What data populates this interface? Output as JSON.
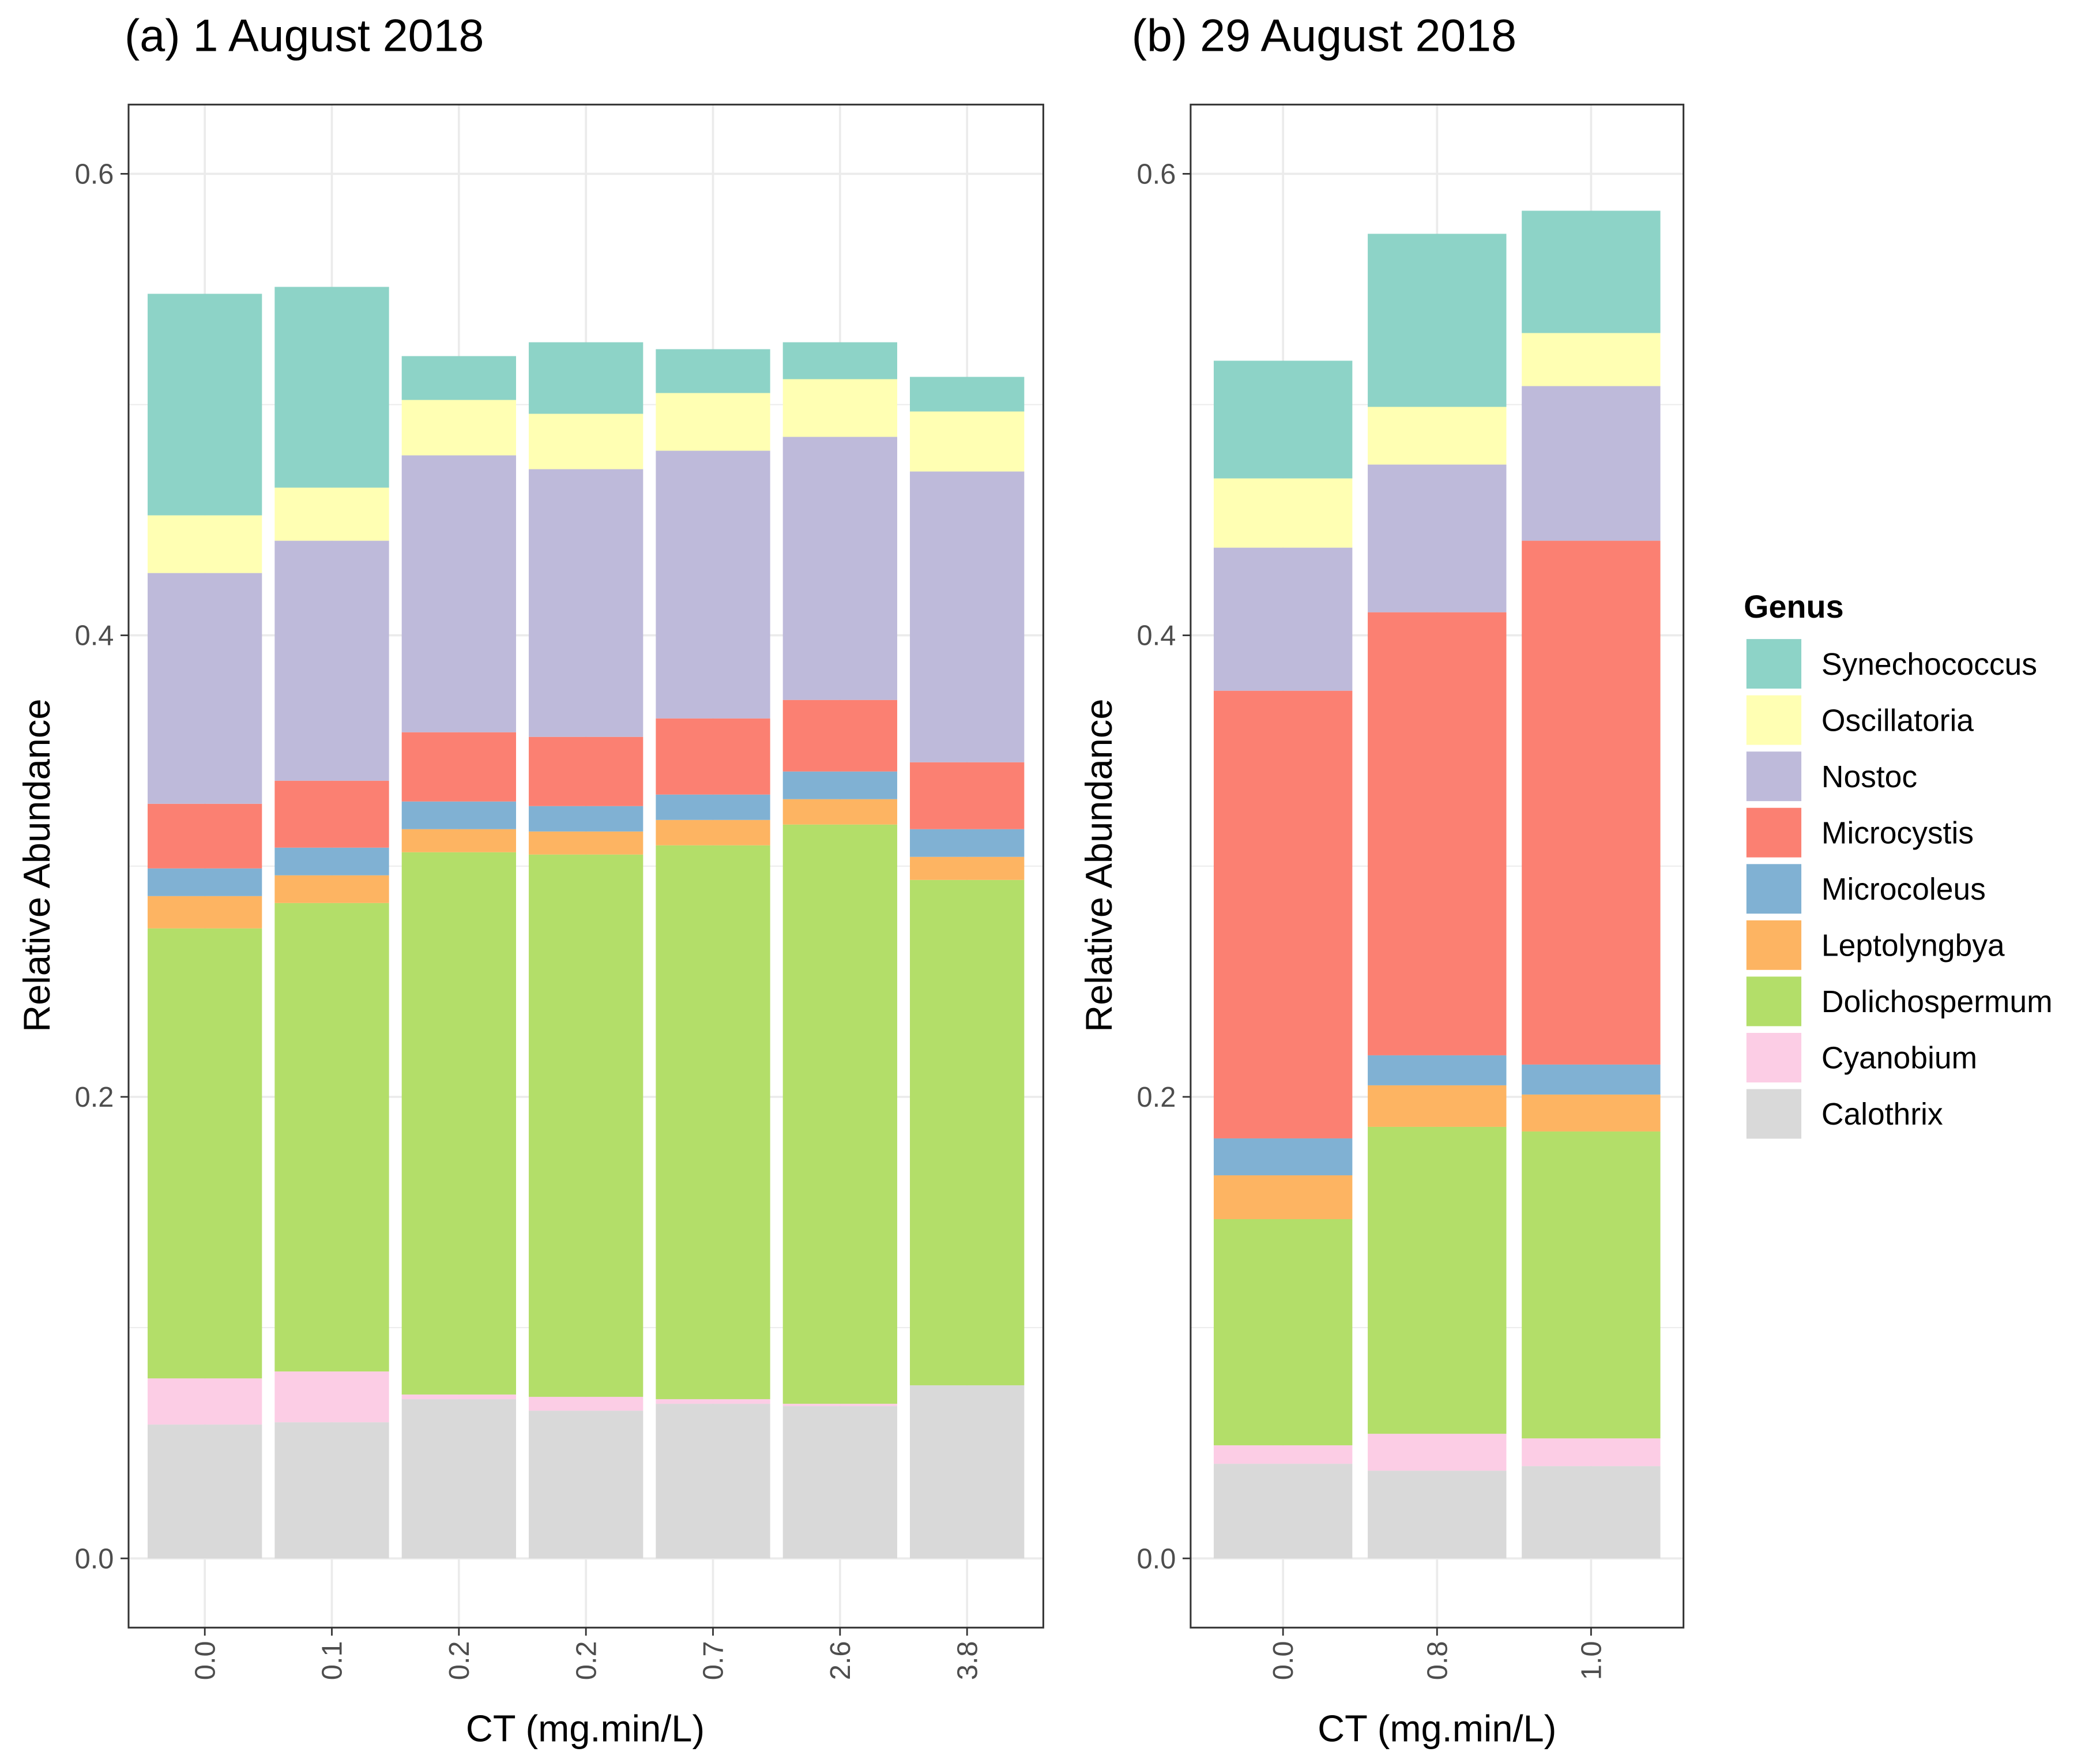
{
  "chart_data": [
    {
      "type": "bar",
      "stacked": true,
      "title": "(a) 1 August 2018",
      "xlabel": "CT (mg.min/L)",
      "ylabel": "Relative Abundance",
      "ylim": [
        -0.03,
        0.63
      ],
      "ytick_values": [
        0,
        0.2,
        0.4,
        0.6
      ],
      "ytick_labels": [
        "0.0",
        "0.2",
        "0.4",
        "0.6"
      ],
      "minor_grid": [
        0.1,
        0.3,
        0.5
      ],
      "categories": [
        "0.0",
        "0.1",
        "0.2",
        "0.2",
        "0.7",
        "2.6",
        "3.8"
      ],
      "series": [
        {
          "name": "Calothrix",
          "values": [
            0.058,
            0.059,
            0.069,
            0.064,
            0.067,
            0.066,
            0.075
          ]
        },
        {
          "name": "Cyanobium",
          "values": [
            0.02,
            0.022,
            0.002,
            0.006,
            0.002,
            0.001,
            0.0
          ]
        },
        {
          "name": "Dolichospermum",
          "values": [
            0.195,
            0.203,
            0.235,
            0.235,
            0.24,
            0.251,
            0.219
          ]
        },
        {
          "name": "Leptolyngbya",
          "values": [
            0.014,
            0.012,
            0.01,
            0.01,
            0.011,
            0.011,
            0.01
          ]
        },
        {
          "name": "Microcoleus",
          "values": [
            0.012,
            0.012,
            0.012,
            0.011,
            0.011,
            0.012,
            0.012
          ]
        },
        {
          "name": "Microcystis",
          "values": [
            0.028,
            0.029,
            0.03,
            0.03,
            0.033,
            0.031,
            0.029
          ]
        },
        {
          "name": "Nostoc",
          "values": [
            0.1,
            0.104,
            0.12,
            0.116,
            0.116,
            0.114,
            0.126
          ]
        },
        {
          "name": "Oscillatoria",
          "values": [
            0.025,
            0.023,
            0.024,
            0.024,
            0.025,
            0.025,
            0.026
          ]
        },
        {
          "name": "Synechococcus",
          "values": [
            0.096,
            0.087,
            0.019,
            0.031,
            0.019,
            0.016,
            0.015
          ]
        }
      ]
    },
    {
      "type": "bar",
      "stacked": true,
      "title": "(b) 29 August 2018",
      "xlabel": "CT (mg.min/L)",
      "ylabel": "Relative Abundance",
      "ylim": [
        -0.03,
        0.63
      ],
      "ytick_values": [
        0,
        0.2,
        0.4,
        0.6
      ],
      "ytick_labels": [
        "0.0",
        "0.2",
        "0.4",
        "0.6"
      ],
      "minor_grid": [
        0.1,
        0.3,
        0.5
      ],
      "categories": [
        "0.0",
        "0.8",
        "1.0"
      ],
      "series": [
        {
          "name": "Calothrix",
          "values": [
            0.041,
            0.038,
            0.04
          ]
        },
        {
          "name": "Cyanobium",
          "values": [
            0.008,
            0.016,
            0.012
          ]
        },
        {
          "name": "Dolichospermum",
          "values": [
            0.098,
            0.133,
            0.133
          ]
        },
        {
          "name": "Leptolyngbya",
          "values": [
            0.019,
            0.018,
            0.016
          ]
        },
        {
          "name": "Microcoleus",
          "values": [
            0.016,
            0.013,
            0.013
          ]
        },
        {
          "name": "Microcystis",
          "values": [
            0.194,
            0.192,
            0.227
          ]
        },
        {
          "name": "Nostoc",
          "values": [
            0.062,
            0.064,
            0.067
          ]
        },
        {
          "name": "Oscillatoria",
          "values": [
            0.03,
            0.025,
            0.023
          ]
        },
        {
          "name": "Synechococcus",
          "values": [
            0.051,
            0.075,
            0.053
          ]
        }
      ]
    }
  ],
  "legend": {
    "title": "Genus",
    "entries": [
      {
        "name": "Synechococcus",
        "color": "#8DD3C7"
      },
      {
        "name": "Oscillatoria",
        "color": "#FFFFB3"
      },
      {
        "name": "Nostoc",
        "color": "#BEBADA"
      },
      {
        "name": "Microcystis",
        "color": "#FB8072"
      },
      {
        "name": "Microcoleus",
        "color": "#80B1D3"
      },
      {
        "name": "Leptolyngbya",
        "color": "#FDB462"
      },
      {
        "name": "Dolichospermum",
        "color": "#B3DE69"
      },
      {
        "name": "Cyanobium",
        "color": "#FCCDE5"
      },
      {
        "name": "Calothrix",
        "color": "#D9D9D9"
      }
    ]
  }
}
